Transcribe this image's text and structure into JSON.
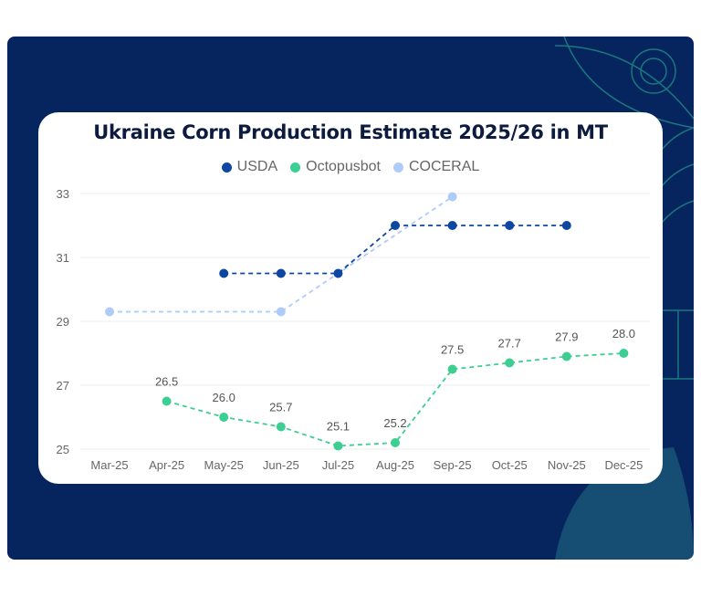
{
  "colors": {
    "USDA": "#0d47a1",
    "Octopusbot": "#3ccf91",
    "COCERAL": "#aecbfa",
    "background": "#06245e",
    "decor": "#1f8f86"
  },
  "chart_data": {
    "type": "line",
    "title": "Ukraine Corn Production Estimate 2025/26 in MT",
    "categories": [
      "Mar-25",
      "Apr-25",
      "May-25",
      "Jun-25",
      "Jul-25",
      "Aug-25",
      "Sep-25",
      "Oct-25",
      "Nov-25",
      "Dec-25"
    ],
    "ylim": [
      25,
      33
    ],
    "yticks": [
      25,
      27,
      29,
      31,
      33
    ],
    "yticks_labels": [
      "25",
      "27",
      "29",
      "31",
      "33"
    ],
    "grid": true,
    "legend_position": "top-center",
    "series": [
      {
        "name": "USDA",
        "values": [
          null,
          null,
          30.5,
          30.5,
          30.5,
          32,
          32,
          32,
          32,
          null
        ],
        "labels": false
      },
      {
        "name": "Octopusbot",
        "values": [
          null,
          26.5,
          26.0,
          25.7,
          25.1,
          25.2,
          27.5,
          27.7,
          27.9,
          28.0
        ],
        "labels": true,
        "label_text": [
          null,
          "26.5",
          "26.0",
          "25.7",
          "25.1",
          "25.2",
          "27.5",
          "27.7",
          "27.9",
          "28.0"
        ]
      },
      {
        "name": "COCERAL",
        "values": [
          29.3,
          null,
          null,
          29.3,
          null,
          null,
          32.9,
          null,
          null,
          null
        ],
        "labels": false
      }
    ]
  }
}
